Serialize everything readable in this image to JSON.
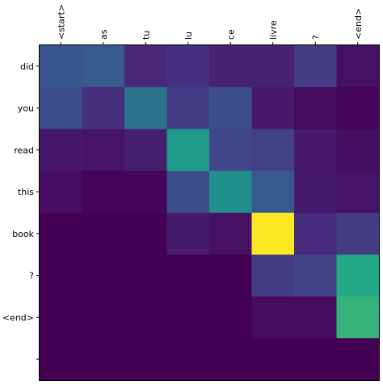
{
  "chart_data": {
    "type": "heatmap",
    "title": "",
    "xlabel": "",
    "ylabel": "",
    "x_tick_labels": [
      "<start>",
      "as",
      "tu",
      "lu",
      "ce",
      "livre",
      "?",
      "<end>"
    ],
    "y_tick_labels": [
      "did",
      "you",
      "read",
      "this",
      "book",
      "?",
      "<end>",
      ""
    ],
    "colormap": "viridis",
    "value_range": [
      0,
      1
    ],
    "grid": false,
    "values": [
      [
        0.33,
        0.36,
        0.15,
        0.18,
        0.12,
        0.12,
        0.22,
        0.06
      ],
      [
        0.3,
        0.17,
        0.48,
        0.22,
        0.3,
        0.09,
        0.04,
        0.01
      ],
      [
        0.08,
        0.07,
        0.11,
        0.68,
        0.26,
        0.24,
        0.09,
        0.05
      ],
      [
        0.05,
        0.01,
        0.02,
        0.3,
        0.62,
        0.35,
        0.1,
        0.07
      ],
      [
        0.0,
        0.0,
        0.0,
        0.1,
        0.06,
        1.0,
        0.16,
        0.22
      ],
      [
        0.0,
        0.0,
        0.0,
        0.0,
        0.0,
        0.22,
        0.24,
        0.75
      ],
      [
        0.0,
        0.0,
        0.0,
        0.0,
        0.0,
        0.04,
        0.04,
        0.78
      ],
      [
        0.0,
        0.0,
        0.0,
        0.0,
        0.0,
        0.0,
        0.0,
        0.0
      ]
    ]
  }
}
